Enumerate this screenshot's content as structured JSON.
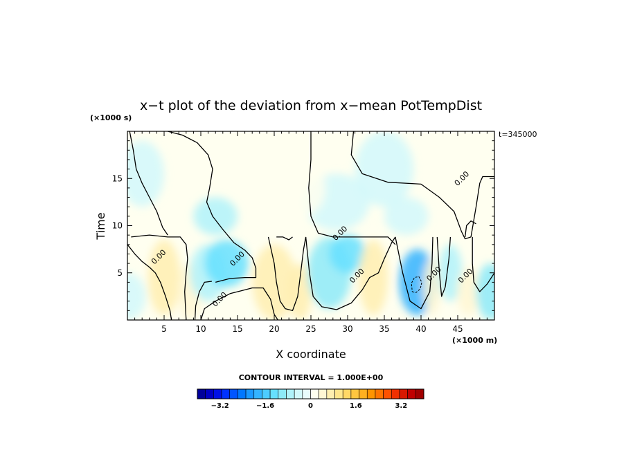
{
  "chart_data": {
    "type": "heatmap",
    "title": "x−t plot of the deviation from x−mean PotTempDist",
    "xlabel": "X coordinate",
    "ylabel": "Time",
    "x_unit": "(×1000 m)",
    "y_unit": "(×1000 s)",
    "time_stamp": "t=345000",
    "xlim": [
      0,
      50
    ],
    "ylim": [
      0,
      20
    ],
    "x_ticks": [
      5,
      10,
      15,
      20,
      25,
      30,
      35,
      40,
      45
    ],
    "y_ticks": [
      5,
      10,
      15
    ],
    "contour_interval_label": "CONTOUR INTERVAL = 1.000E+00",
    "contour_labels": [
      {
        "text": "0.00",
        "x": 4.5,
        "y": 6.5
      },
      {
        "text": "0.00",
        "x": 15.2,
        "y": 6.3
      },
      {
        "text": "0.00",
        "x": 12.8,
        "y": 2.0
      },
      {
        "text": "0.00",
        "x": 29.2,
        "y": 9.0
      },
      {
        "text": "0.00",
        "x": 31.5,
        "y": 4.5
      },
      {
        "text": "0.00",
        "x": 42.0,
        "y": 4.7
      },
      {
        "text": "0.00",
        "x": 46.3,
        "y": 4.5
      },
      {
        "text": "0.00",
        "x": 45.8,
        "y": 14.8
      }
    ],
    "colorbar": {
      "min": -4,
      "max": 4,
      "tick_labels": [
        "−3.2",
        "−1.6",
        "0",
        "1.6",
        "3.2"
      ],
      "tick_values": [
        -3.2,
        -1.6,
        0,
        1.6,
        3.2
      ],
      "colors": [
        "#00009a",
        "#0000c4",
        "#0010e6",
        "#0032ff",
        "#0055ff",
        "#0077ff",
        "#1a99ff",
        "#33b3ff",
        "#4dccff",
        "#66e0ff",
        "#8deaf8",
        "#b0f2fa",
        "#d2f8fb",
        "#e8fcfd",
        "#fffff0",
        "#fff7d4",
        "#ffefb0",
        "#ffe68c",
        "#ffd866",
        "#ffc640",
        "#ffb020",
        "#ff9400",
        "#ff7400",
        "#ff5200",
        "#f03000",
        "#d81800",
        "#c00000",
        "#a00000"
      ]
    },
    "field_blobs": [
      {
        "x": 0,
        "y": 2.5,
        "rx": 2.5,
        "ry": 2.5,
        "value": -0.4
      },
      {
        "x": 2.0,
        "y": 15.5,
        "rx": 3.0,
        "ry": 3.5,
        "value": -0.3
      },
      {
        "x": 5.0,
        "y": 4.5,
        "rx": 2.2,
        "ry": 4.0,
        "value": 0.7
      },
      {
        "x": 8.5,
        "y": 3.0,
        "rx": 1.6,
        "ry": 3.0,
        "value": 0.5
      },
      {
        "x": 11.0,
        "y": 5.0,
        "rx": 2.5,
        "ry": 3.0,
        "value": -0.7
      },
      {
        "x": 13.5,
        "y": 6.0,
        "rx": 3.0,
        "ry": 2.5,
        "value": -1.2
      },
      {
        "x": 12.0,
        "y": 11.0,
        "rx": 3.0,
        "ry": 2.0,
        "value": -0.6
      },
      {
        "x": 20.0,
        "y": 4.0,
        "rx": 3.0,
        "ry": 4.0,
        "value": 0.6
      },
      {
        "x": 23.5,
        "y": 3.0,
        "rx": 1.6,
        "ry": 3.0,
        "value": 0.6
      },
      {
        "x": 27.5,
        "y": 5.0,
        "rx": 3.0,
        "ry": 3.8,
        "value": -0.9
      },
      {
        "x": 30.0,
        "y": 7.0,
        "rx": 2.5,
        "ry": 2.0,
        "value": -1.4
      },
      {
        "x": 33.5,
        "y": 4.5,
        "rx": 2.0,
        "ry": 4.0,
        "value": 0.8
      },
      {
        "x": 28.5,
        "y": 12.5,
        "rx": 4.5,
        "ry": 3.0,
        "value": -0.5
      },
      {
        "x": 35.0,
        "y": 16.0,
        "rx": 4.0,
        "ry": 4.0,
        "value": -0.4
      },
      {
        "x": 38.0,
        "y": 11.0,
        "rx": 3.0,
        "ry": 2.0,
        "value": -0.4
      },
      {
        "x": 39.5,
        "y": 4.0,
        "rx": 2.5,
        "ry": 3.5,
        "value": -2.0
      },
      {
        "x": 41.5,
        "y": 3.5,
        "rx": 1.2,
        "ry": 3.0,
        "value": 0.5
      },
      {
        "x": 44.0,
        "y": 5.0,
        "rx": 1.6,
        "ry": 3.0,
        "value": -0.8
      },
      {
        "x": 46.5,
        "y": 3.0,
        "rx": 1.6,
        "ry": 2.5,
        "value": 0.5
      },
      {
        "x": 49.5,
        "y": 3.0,
        "rx": 2.0,
        "ry": 3.0,
        "value": -1.0
      },
      {
        "x": 24.0,
        "y": 14.0,
        "rx": 3.0,
        "ry": 3.0,
        "value": 0.25
      }
    ],
    "contours": [
      [
        [
          0.3,
          20
        ],
        [
          0.8,
          18
        ],
        [
          1.2,
          16
        ],
        [
          2.0,
          14.5
        ],
        [
          3.0,
          13.0
        ],
        [
          4.0,
          11.5
        ],
        [
          4.8,
          9.8
        ],
        [
          5.5,
          9.0
        ]
      ],
      [
        [
          5.5,
          20
        ],
        [
          7.5,
          19.6
        ],
        [
          9.5,
          18.8
        ],
        [
          11.0,
          17.5
        ],
        [
          11.6,
          16.0
        ],
        [
          11.2,
          14.0
        ],
        [
          10.8,
          12.5
        ],
        [
          11.6,
          11.0
        ],
        [
          13.0,
          9.6
        ],
        [
          14.5,
          8.2
        ],
        [
          16.0,
          7.4
        ],
        [
          17.0,
          6.6
        ],
        [
          17.5,
          5.5
        ],
        [
          17.5,
          4.5
        ],
        [
          16.0,
          4.5
        ],
        [
          14.0,
          4.4
        ],
        [
          12.0,
          4.0
        ]
      ],
      [
        [
          0.5,
          8.8
        ],
        [
          3.0,
          9.0
        ],
        [
          5.5,
          8.8
        ],
        [
          7.2,
          8.8
        ],
        [
          8.0,
          8.0
        ],
        [
          8.2,
          6.5
        ],
        [
          8.0,
          5.0
        ],
        [
          7.8,
          3.0
        ],
        [
          8.0,
          0
        ]
      ],
      [
        [
          0,
          8.0
        ],
        [
          1.0,
          7.0
        ],
        [
          2.0,
          6.2
        ],
        [
          3.0,
          5.6
        ],
        [
          3.8,
          5.0
        ],
        [
          4.5,
          4.0
        ],
        [
          5.2,
          2.5
        ],
        [
          5.8,
          1.0
        ],
        [
          6.0,
          0
        ]
      ],
      [
        [
          10.0,
          0
        ],
        [
          10.5,
          1.2
        ],
        [
          12.0,
          2.0
        ],
        [
          14.0,
          2.8
        ],
        [
          15.5,
          3.1
        ],
        [
          17.0,
          3.4
        ],
        [
          18.5,
          3.4
        ],
        [
          19.5,
          2.2
        ],
        [
          20.0,
          0.6
        ],
        [
          20.5,
          0
        ]
      ],
      [
        [
          9.2,
          0
        ],
        [
          9.3,
          1.5
        ],
        [
          9.8,
          3.0
        ],
        [
          10.5,
          4.0
        ],
        [
          11.5,
          4.1
        ]
      ],
      [
        [
          19.2,
          8.8
        ],
        [
          20.0,
          6.0
        ],
        [
          20.3,
          4.0
        ],
        [
          20.8,
          2.0
        ],
        [
          21.5,
          1.2
        ],
        [
          22.5,
          1.0
        ],
        [
          23.2,
          2.5
        ],
        [
          23.6,
          5.0
        ],
        [
          24.0,
          7.5
        ],
        [
          24.3,
          8.8
        ]
      ],
      [
        [
          25.0,
          20
        ],
        [
          25.0,
          17
        ],
        [
          24.7,
          14.0
        ],
        [
          25.0,
          11.0
        ],
        [
          26.0,
          9.2
        ],
        [
          28.0,
          8.8
        ],
        [
          31.0,
          8.8
        ],
        [
          33.0,
          8.8
        ],
        [
          35.5,
          8.8
        ],
        [
          36.5,
          8.0
        ]
      ],
      [
        [
          24.3,
          8.8
        ],
        [
          24.8,
          5.0
        ],
        [
          25.3,
          2.5
        ],
        [
          26.5,
          1.4
        ],
        [
          28.5,
          1.1
        ],
        [
          30.5,
          1.8
        ],
        [
          32.0,
          3.2
        ],
        [
          33.0,
          4.5
        ],
        [
          34.2,
          5.0
        ],
        [
          35.0,
          6.5
        ],
        [
          36.0,
          8.2
        ],
        [
          36.5,
          8.8
        ]
      ],
      [
        [
          30.8,
          20
        ],
        [
          30.5,
          17.5
        ],
        [
          32.0,
          15.5
        ],
        [
          35.5,
          14.6
        ],
        [
          40.0,
          14.4
        ],
        [
          42.5,
          13.0
        ],
        [
          44.5,
          11.5
        ],
        [
          45.5,
          9.4
        ],
        [
          46.0,
          8.6
        ],
        [
          46.8,
          8.8
        ]
      ],
      [
        [
          46.8,
          8.8
        ],
        [
          47.5,
          12.0
        ],
        [
          48.0,
          14.5
        ],
        [
          48.4,
          15.2
        ],
        [
          50.0,
          15.2
        ]
      ],
      [
        [
          36.5,
          8.8
        ],
        [
          37.5,
          5.0
        ],
        [
          38.5,
          2.0
        ],
        [
          40.0,
          1.2
        ],
        [
          41.2,
          3.0
        ],
        [
          41.5,
          6.0
        ],
        [
          41.6,
          8.8
        ]
      ],
      [
        [
          42.2,
          8.8
        ],
        [
          42.5,
          5.0
        ],
        [
          42.8,
          2.5
        ],
        [
          43.3,
          3.5
        ],
        [
          43.8,
          6.5
        ],
        [
          44.0,
          8.8
        ]
      ],
      [
        [
          47.0,
          8.8
        ],
        [
          47.0,
          6.0
        ],
        [
          47.2,
          4.0
        ],
        [
          48.0,
          3.0
        ],
        [
          49.0,
          3.8
        ],
        [
          50.0,
          5.0
        ]
      ],
      [
        [
          46.0,
          8.8
        ],
        [
          46.2,
          10.0
        ],
        [
          46.8,
          10.5
        ],
        [
          47.5,
          10.2
        ]
      ],
      [
        [
          20.3,
          8.8
        ],
        [
          21.2,
          8.8
        ],
        [
          22.0,
          8.5
        ],
        [
          22.5,
          8.8
        ]
      ]
    ],
    "dashed_contours": [
      [
        [
          38.8,
          3.0
        ],
        [
          39.3,
          2.9
        ],
        [
          39.9,
          3.3
        ],
        [
          40.1,
          4.0
        ],
        [
          39.7,
          4.6
        ],
        [
          39.1,
          4.5
        ],
        [
          38.7,
          3.9
        ],
        [
          38.8,
          3.0
        ]
      ]
    ]
  }
}
